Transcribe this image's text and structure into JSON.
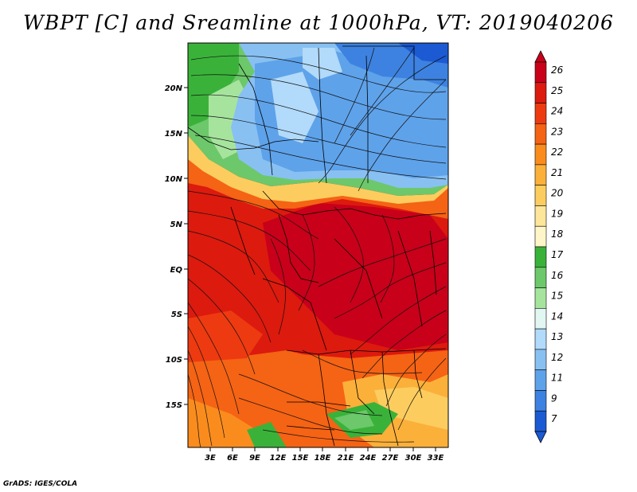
{
  "title": "WBPT [C] and Sreamline at 1000hPa, VT: 2019040206",
  "credit": "GrADS: IGES/COLA",
  "map": {
    "x_ticks": [
      "3E",
      "6E",
      "9E",
      "12E",
      "15E",
      "18E",
      "21E",
      "24E",
      "27E",
      "30E",
      "33E"
    ],
    "y_ticks": [
      "20N",
      "15N",
      "10N",
      "5N",
      "EQ",
      "5S",
      "10S",
      "15S"
    ]
  },
  "colorbar": {
    "levels": [
      "26",
      "25",
      "24",
      "23",
      "22",
      "21",
      "20",
      "19",
      "18",
      "17",
      "16",
      "15",
      "14",
      "13",
      "12",
      "11",
      "9",
      "7"
    ],
    "colors": [
      "#c8001a",
      "#dc1a0e",
      "#ee3a10",
      "#f56314",
      "#fa8c1e",
      "#fbb03a",
      "#fccd5e",
      "#fde59a",
      "#fef6c8",
      "#3ab23a",
      "#6cc86a",
      "#a6e49e",
      "#e2f6f2",
      "#b2dafa",
      "#88c0f2",
      "#5ea2ea",
      "#3d82e0",
      "#1c5ad4"
    ]
  }
}
